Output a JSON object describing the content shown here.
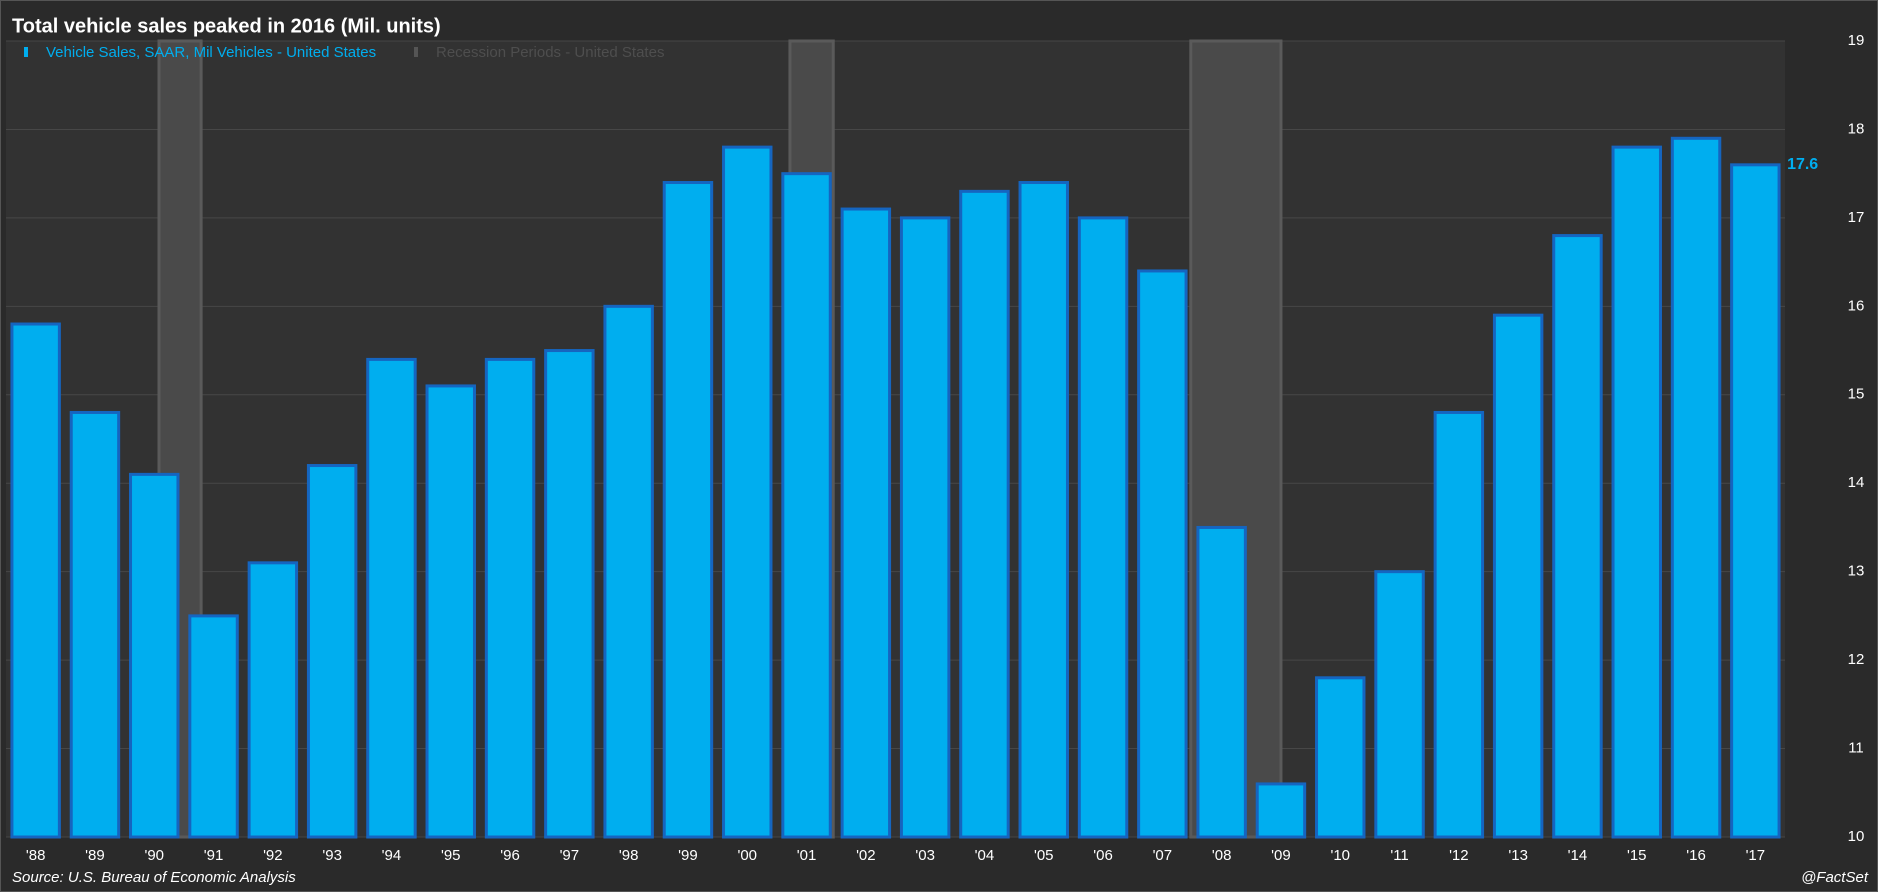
{
  "chart_data": {
    "type": "bar",
    "title": "Total vehicle sales peaked in 2016 (Mil. units)",
    "categories": [
      "'88",
      "'89",
      "'90",
      "'91",
      "'92",
      "'93",
      "'94",
      "'95",
      "'96",
      "'97",
      "'98",
      "'99",
      "'00",
      "'01",
      "'02",
      "'03",
      "'04",
      "'05",
      "'06",
      "'07",
      "'08",
      "'09",
      "'10",
      "'11",
      "'12",
      "'13",
      "'14",
      "'15",
      "'16",
      "'17"
    ],
    "series": [
      {
        "name": "Vehicle Sales, SAAR, Mil Vehicles - United States",
        "color": "#00aeef",
        "values": [
          15.8,
          14.8,
          14.1,
          12.5,
          13.1,
          14.2,
          15.4,
          15.1,
          15.4,
          15.5,
          16.0,
          17.4,
          17.8,
          17.5,
          17.1,
          17.0,
          17.3,
          17.4,
          17.0,
          16.4,
          13.5,
          10.6,
          11.8,
          13.0,
          14.8,
          15.9,
          16.8,
          17.8,
          17.9,
          17.6
        ]
      },
      {
        "name": "Recession Periods - United States",
        "color": "#4a4a4a",
        "spans": [
          [
            2.08,
            2.79
          ],
          [
            12.72,
            13.45
          ],
          [
            19.48,
            21.0
          ]
        ]
      }
    ],
    "ylim": [
      10,
      19
    ],
    "yticks": [
      10,
      11,
      12,
      13,
      14,
      15,
      16,
      17,
      18,
      19
    ],
    "grid": true,
    "source": "Source: U.S. Bureau of Economic Analysis",
    "credit": "@FactSet"
  }
}
